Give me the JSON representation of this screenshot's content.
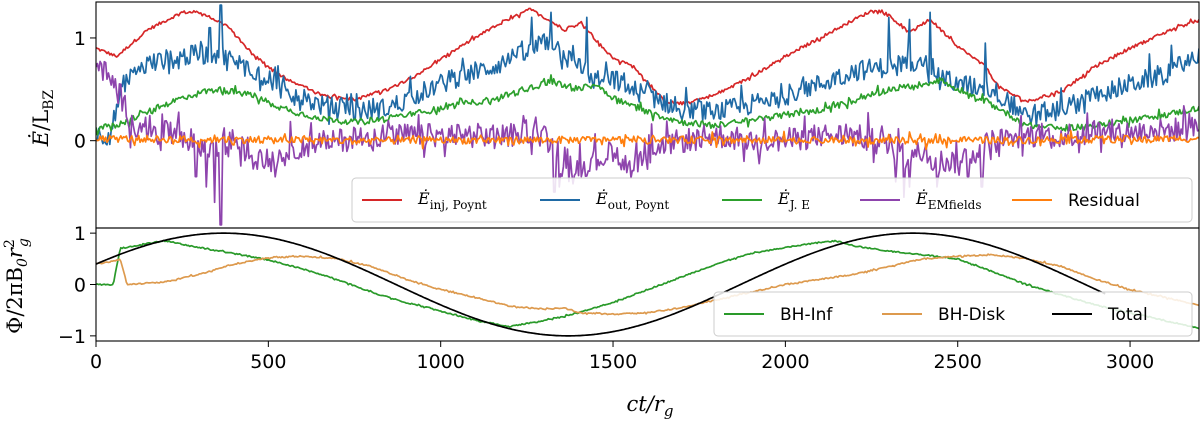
{
  "chart_data": [
    {
      "type": "line",
      "panel": "top",
      "ylabel_main": "Ė",
      "ylabel_slash": "/L",
      "ylabel_sub": "BZ",
      "ylim": [
        -0.85,
        1.35
      ],
      "xlim": [
        0,
        3200
      ],
      "yticks": [
        {
          "value": 0,
          "label": "0"
        },
        {
          "value": 1,
          "label": "1"
        }
      ],
      "legend_position": "lower-right",
      "series": [
        {
          "name": "inj, Poynt",
          "legend_symbol": "Ė",
          "color": "#d62728",
          "noise": 0.015,
          "x": [
            0,
            60,
            150,
            250,
            300,
            380,
            450,
            550,
            650,
            750,
            850,
            950,
            1050,
            1150,
            1260,
            1300,
            1360,
            1410,
            1450,
            1500,
            1560,
            1650,
            1700,
            1800,
            1900,
            2000,
            2100,
            2200,
            2260,
            2300,
            2360,
            2420,
            2500,
            2580,
            2620,
            2700,
            2800,
            2900,
            3000,
            3100,
            3200
          ],
          "y": [
            0.9,
            0.82,
            1.08,
            1.25,
            1.25,
            1.12,
            0.85,
            0.6,
            0.45,
            0.4,
            0.5,
            0.68,
            0.9,
            1.1,
            1.28,
            1.2,
            1.08,
            1.15,
            0.98,
            0.8,
            0.72,
            0.38,
            0.36,
            0.45,
            0.62,
            0.82,
            1.0,
            1.18,
            1.28,
            1.22,
            1.05,
            1.18,
            0.92,
            0.72,
            0.52,
            0.38,
            0.48,
            0.72,
            0.9,
            1.05,
            1.18
          ]
        },
        {
          "name": "out, Poynt",
          "legend_symbol": "Ė",
          "color": "#1f6aa5",
          "noise": 0.1,
          "x": [
            0,
            40,
            80,
            150,
            250,
            350,
            450,
            550,
            650,
            750,
            850,
            950,
            1050,
            1150,
            1250,
            1320,
            1400,
            1450,
            1500,
            1550,
            1600,
            1700,
            1800,
            1900,
            2000,
            2100,
            2200,
            2300,
            2400,
            2450,
            2500,
            2600,
            2700,
            2800,
            2900,
            3000,
            3100,
            3200
          ],
          "y": [
            0.05,
            0.06,
            0.55,
            0.75,
            0.82,
            0.85,
            0.7,
            0.48,
            0.35,
            0.28,
            0.32,
            0.48,
            0.62,
            0.72,
            0.85,
            0.98,
            0.68,
            0.58,
            0.6,
            0.5,
            0.45,
            0.3,
            0.28,
            0.35,
            0.45,
            0.55,
            0.68,
            0.72,
            0.8,
            0.62,
            0.55,
            0.5,
            0.25,
            0.3,
            0.45,
            0.55,
            0.65,
            0.82
          ],
          "spikes": [
            [
              330,
              1.1
            ],
            [
              362,
              1.32
            ],
            [
              1265,
              1.2
            ],
            [
              1320,
              1.25
            ],
            [
              1425,
              1.2
            ],
            [
              2300,
              1.2
            ],
            [
              2360,
              1.18
            ],
            [
              2420,
              1.25
            ],
            [
              2560,
              0.5
            ],
            [
              2580,
              0.95
            ]
          ]
        },
        {
          "name": "J. E",
          "legend_symbol": "Ė",
          "color": "#2ca02c",
          "noise": 0.03,
          "x": [
            0,
            60,
            150,
            250,
            350,
            450,
            550,
            650,
            750,
            850,
            950,
            1050,
            1150,
            1250,
            1320,
            1400,
            1450,
            1500,
            1550,
            1600,
            1700,
            1800,
            1900,
            2000,
            2100,
            2200,
            2300,
            2400,
            2450,
            2500,
            2600,
            2700,
            2800,
            2900,
            3000,
            3100,
            3200
          ],
          "y": [
            0.12,
            0.15,
            0.28,
            0.42,
            0.5,
            0.45,
            0.3,
            0.22,
            0.18,
            0.22,
            0.28,
            0.35,
            0.4,
            0.5,
            0.58,
            0.5,
            0.55,
            0.42,
            0.35,
            0.28,
            0.18,
            0.15,
            0.2,
            0.25,
            0.3,
            0.38,
            0.5,
            0.55,
            0.6,
            0.48,
            0.35,
            0.15,
            0.12,
            0.15,
            0.2,
            0.25,
            0.32
          ]
        },
        {
          "name": "EMfields",
          "legend_symbol": "Ė",
          "color": "#8e44ad",
          "noise": 0.12,
          "x": [
            0,
            40,
            70,
            100,
            150,
            250,
            300,
            350,
            400,
            450,
            500,
            600,
            700,
            800,
            900,
            1000,
            1100,
            1200,
            1250,
            1300,
            1350,
            1400,
            1450,
            1500,
            1550,
            1600,
            1700,
            1800,
            1900,
            2000,
            2100,
            2200,
            2250,
            2300,
            2350,
            2400,
            2450,
            2500,
            2550,
            2600,
            2700,
            2800,
            2900,
            3000,
            3100,
            3200
          ],
          "y": [
            0.78,
            0.6,
            0.45,
            0.2,
            0.1,
            0.05,
            -0.05,
            -0.1,
            0.0,
            -0.15,
            -0.2,
            -0.05,
            0.0,
            0.05,
            0.05,
            0.05,
            0.05,
            0.05,
            0.1,
            0.05,
            -0.15,
            -0.25,
            -0.2,
            -0.1,
            -0.25,
            -0.1,
            0.0,
            0.05,
            0.0,
            0.0,
            0.05,
            0.05,
            0.0,
            -0.05,
            -0.15,
            -0.1,
            -0.2,
            -0.2,
            -0.1,
            0.0,
            0.05,
            0.05,
            0.1,
            0.08,
            0.1,
            0.12
          ],
          "spikes": [
            [
              320,
              -0.45
            ],
            [
              345,
              -0.6
            ],
            [
              362,
              -0.82
            ],
            [
              1330,
              -0.5
            ],
            [
              1345,
              -0.45
            ],
            [
              1385,
              -0.42
            ],
            [
              2320,
              -0.4
            ],
            [
              2345,
              -0.55
            ],
            [
              2360,
              -0.45
            ],
            [
              2440,
              -0.45
            ],
            [
              2530,
              -0.35
            ],
            [
              2570,
              -0.45
            ],
            [
              290,
              -0.35
            ]
          ]
        },
        {
          "name": "Residual",
          "legend_symbol": "",
          "color": "#ff7f0e",
          "noise": 0.035,
          "x": [
            0,
            800,
            1600,
            2400,
            3200
          ],
          "y": [
            0.02,
            0.0,
            0.01,
            0.0,
            0.02
          ]
        }
      ]
    },
    {
      "type": "line",
      "panel": "bottom",
      "ylabel": "Φ/2πB",
      "ylabel_sub0": "0",
      "ylabel_r": "r",
      "ylabel_sup": "2",
      "ylabel_subg": "g",
      "xlabel": "ct/r",
      "xlabel_sub": "g",
      "xlim": [
        0,
        3200
      ],
      "ylim": [
        -1.1,
        1.1
      ],
      "xticks": [
        {
          "value": 0,
          "label": "0"
        },
        {
          "value": 500,
          "label": "500"
        },
        {
          "value": 1000,
          "label": "1000"
        },
        {
          "value": 1500,
          "label": "1500"
        },
        {
          "value": 2000,
          "label": "2000"
        },
        {
          "value": 2500,
          "label": "2500"
        },
        {
          "value": 3000,
          "label": "3000"
        }
      ],
      "yticks": [
        {
          "value": -1,
          "label": "−1"
        },
        {
          "value": 0,
          "label": "0"
        },
        {
          "value": 1,
          "label": "1"
        }
      ],
      "legend_position": "lower-right",
      "series": [
        {
          "name": "BH-Inf",
          "color": "#2a9a2a",
          "noise": 0.012,
          "x": [
            0,
            50,
            70,
            150,
            200,
            300,
            400,
            500,
            600,
            700,
            800,
            900,
            1000,
            1100,
            1200,
            1300,
            1360,
            1400,
            1500,
            1600,
            1700,
            1800,
            1900,
            2000,
            2100,
            2150,
            2200,
            2300,
            2400,
            2500,
            2600,
            2700,
            2800,
            2900,
            3000,
            3100,
            3200
          ],
          "y": [
            0.0,
            0.0,
            0.7,
            0.8,
            0.85,
            0.72,
            0.6,
            0.48,
            0.3,
            0.1,
            -0.15,
            -0.35,
            -0.52,
            -0.7,
            -0.82,
            -0.7,
            -0.62,
            -0.55,
            -0.35,
            -0.1,
            0.15,
            0.4,
            0.6,
            0.72,
            0.82,
            0.85,
            0.75,
            0.65,
            0.58,
            0.5,
            0.25,
            0.0,
            -0.2,
            -0.4,
            -0.55,
            -0.7,
            -0.85
          ]
        },
        {
          "name": "BH-Disk",
          "color": "#dd9a4e",
          "noise": 0.012,
          "x": [
            0,
            50,
            70,
            90,
            200,
            300,
            400,
            500,
            600,
            700,
            800,
            900,
            1000,
            1100,
            1200,
            1300,
            1360,
            1400,
            1500,
            1600,
            1700,
            1800,
            1900,
            2000,
            2100,
            2200,
            2300,
            2400,
            2500,
            2600,
            2700,
            2800,
            2900,
            3000,
            3100,
            3200
          ],
          "y": [
            0.4,
            0.45,
            0.5,
            0.0,
            0.05,
            0.2,
            0.4,
            0.52,
            0.55,
            0.5,
            0.35,
            0.1,
            -0.1,
            -0.25,
            -0.42,
            -0.48,
            -0.45,
            -0.55,
            -0.58,
            -0.55,
            -0.45,
            -0.3,
            -0.15,
            0.0,
            0.1,
            0.2,
            0.35,
            0.5,
            0.55,
            0.58,
            0.5,
            0.35,
            0.1,
            -0.1,
            -0.25,
            -0.4
          ]
        },
        {
          "name": "Total",
          "color": "#000000",
          "noise": 0,
          "kind": "sine",
          "amplitude": 1.0,
          "peak_x": 370,
          "period": 2000,
          "x_start": 0,
          "x_end": 2930
        }
      ]
    }
  ]
}
